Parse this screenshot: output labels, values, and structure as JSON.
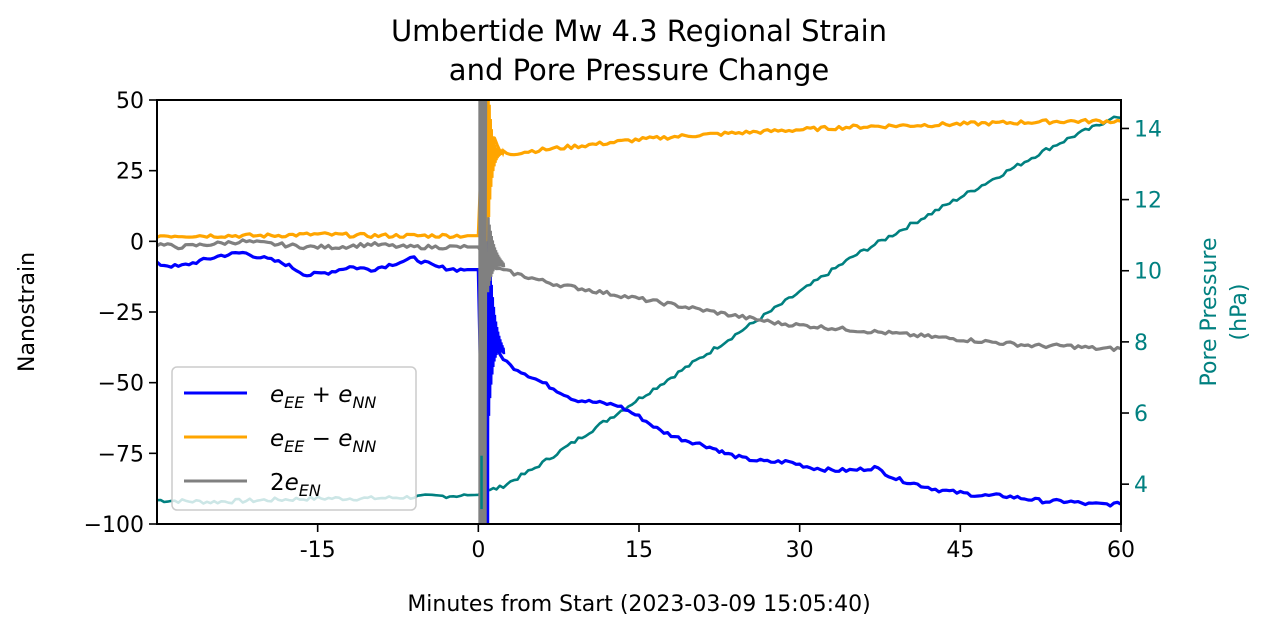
{
  "chart_data": {
    "type": "line",
    "title_lines": [
      "Umbertide Mw 4.3 Regional Strain",
      "and Pore Pressure Change"
    ],
    "xlabel": "Minutes from Start (2023-03-09 15:05:40)",
    "ylabel": "Nanostrain",
    "ylabel_right_lines": [
      "Pore Pressure",
      "(hPa)"
    ],
    "xlim": [
      -30,
      60
    ],
    "ylim": [
      -100,
      50
    ],
    "ylim_right": [
      2.88,
      14.8
    ],
    "x_ticks": [
      -15,
      0,
      15,
      30,
      45,
      60
    ],
    "x_tick_labels": [
      "-15",
      "0",
      "15",
      "30",
      "45",
      "60"
    ],
    "y_ticks": [
      50,
      25,
      0,
      -25,
      -50,
      -75,
      -100
    ],
    "y_tick_labels": [
      "50",
      "25",
      "0",
      "−25",
      "−50",
      "−75",
      "−100"
    ],
    "y_ticks_right": [
      14,
      12,
      10,
      8,
      6,
      4
    ],
    "y_tick_labels_right": [
      "14",
      "12",
      "10",
      "8",
      "6",
      "4"
    ],
    "grid": false,
    "legend_position": "lower-left",
    "legend": [
      {
        "name": "e_EE + e_NN",
        "base": "e",
        "sub1": "EE",
        "op": "+",
        "sub2": "NN",
        "color": "#0000ff"
      },
      {
        "name": "e_EE − e_NN",
        "base": "e",
        "sub1": "EE",
        "op": "−",
        "sub2": "NN",
        "color": "#ffa500"
      },
      {
        "name": "2e_EN",
        "prefix": "2",
        "base": "e",
        "sub1": "EN",
        "color": "#808080"
      }
    ],
    "series": [
      {
        "name": "e_EE + e_NN",
        "axis": "left",
        "color": "#0000ff",
        "x": [
          -30,
          -28,
          -26,
          -24,
          -22,
          -20,
          -18,
          -16,
          -14,
          -12,
          -10,
          -8,
          -6,
          -4,
          -2,
          0,
          0.5,
          1,
          2,
          3,
          5,
          7,
          9,
          11,
          13,
          15,
          17,
          19,
          21,
          22.5,
          23,
          25,
          27,
          29,
          31,
          33,
          35,
          37,
          39,
          41,
          43,
          45,
          47,
          49,
          51,
          53,
          55,
          57,
          59,
          60
        ],
        "values": [
          -8,
          -9,
          -7,
          -5,
          -4,
          -6,
          -8,
          -12,
          -11,
          -9,
          -10,
          -8,
          -6,
          -9,
          -10,
          -10,
          -100,
          -30,
          -40,
          -44,
          -48,
          -52,
          -56,
          -57,
          -58,
          -62,
          -67,
          -70,
          -72,
          -74,
          -75,
          -77,
          -78,
          -78,
          -80,
          -81,
          -81,
          -80,
          -84,
          -86,
          -88,
          -89,
          -90,
          -90,
          -91,
          -92,
          -92,
          -93,
          -93,
          -93
        ]
      },
      {
        "name": "e_EE − e_NN",
        "axis": "left",
        "color": "#ffa500",
        "x": [
          -30,
          -25,
          -20,
          -15,
          -10,
          -5,
          0,
          0.5,
          1,
          1.5,
          2,
          3,
          5,
          10,
          15,
          20,
          25,
          30,
          35,
          40,
          45,
          50,
          55,
          60
        ],
        "values": [
          2,
          2,
          2,
          2.5,
          2,
          2,
          2,
          50,
          28,
          36,
          32,
          31,
          32,
          34,
          36,
          37.5,
          38.5,
          39.5,
          40.5,
          41,
          41.5,
          42,
          42.5,
          42.5
        ]
      },
      {
        "name": "2e_EN",
        "axis": "left",
        "color": "#808080",
        "x": [
          -30,
          -28,
          -25,
          -22,
          -19,
          -16,
          -13,
          -10,
          -7,
          -4,
          -1,
          0,
          1,
          2,
          4,
          7,
          10,
          13,
          16,
          19,
          22,
          25,
          28,
          31,
          34,
          37,
          40,
          43,
          46,
          49,
          52,
          55,
          58,
          60
        ],
        "values": [
          -1,
          -2,
          -1,
          0,
          -1,
          -2,
          -2,
          -1,
          -2,
          -2,
          -2,
          -2,
          -8,
          -10,
          -12,
          -15,
          -17,
          -19,
          -21,
          -23,
          -25,
          -27,
          -29,
          -30,
          -31,
          -32,
          -33,
          -34,
          -35,
          -36,
          -37,
          -37,
          -38,
          -38
        ]
      },
      {
        "name": "Pore Pressure",
        "axis": "right",
        "color": "#008080",
        "x": [
          -30,
          -25,
          -20,
          -15,
          -10,
          -5,
          0,
          0.5,
          2,
          5,
          8,
          11,
          14,
          17,
          20,
          23,
          26,
          29,
          32,
          35,
          38,
          41,
          44,
          47,
          50,
          53,
          56,
          58,
          59,
          60
        ],
        "values": [
          3.55,
          3.5,
          3.55,
          3.6,
          3.6,
          3.65,
          3.7,
          3.8,
          3.9,
          4.4,
          5.0,
          5.6,
          6.2,
          6.8,
          7.4,
          8.0,
          8.6,
          9.2,
          9.8,
          10.4,
          10.9,
          11.4,
          11.9,
          12.4,
          12.9,
          13.4,
          13.85,
          14.1,
          14.3,
          14.3
        ]
      }
    ],
    "annotations": []
  }
}
